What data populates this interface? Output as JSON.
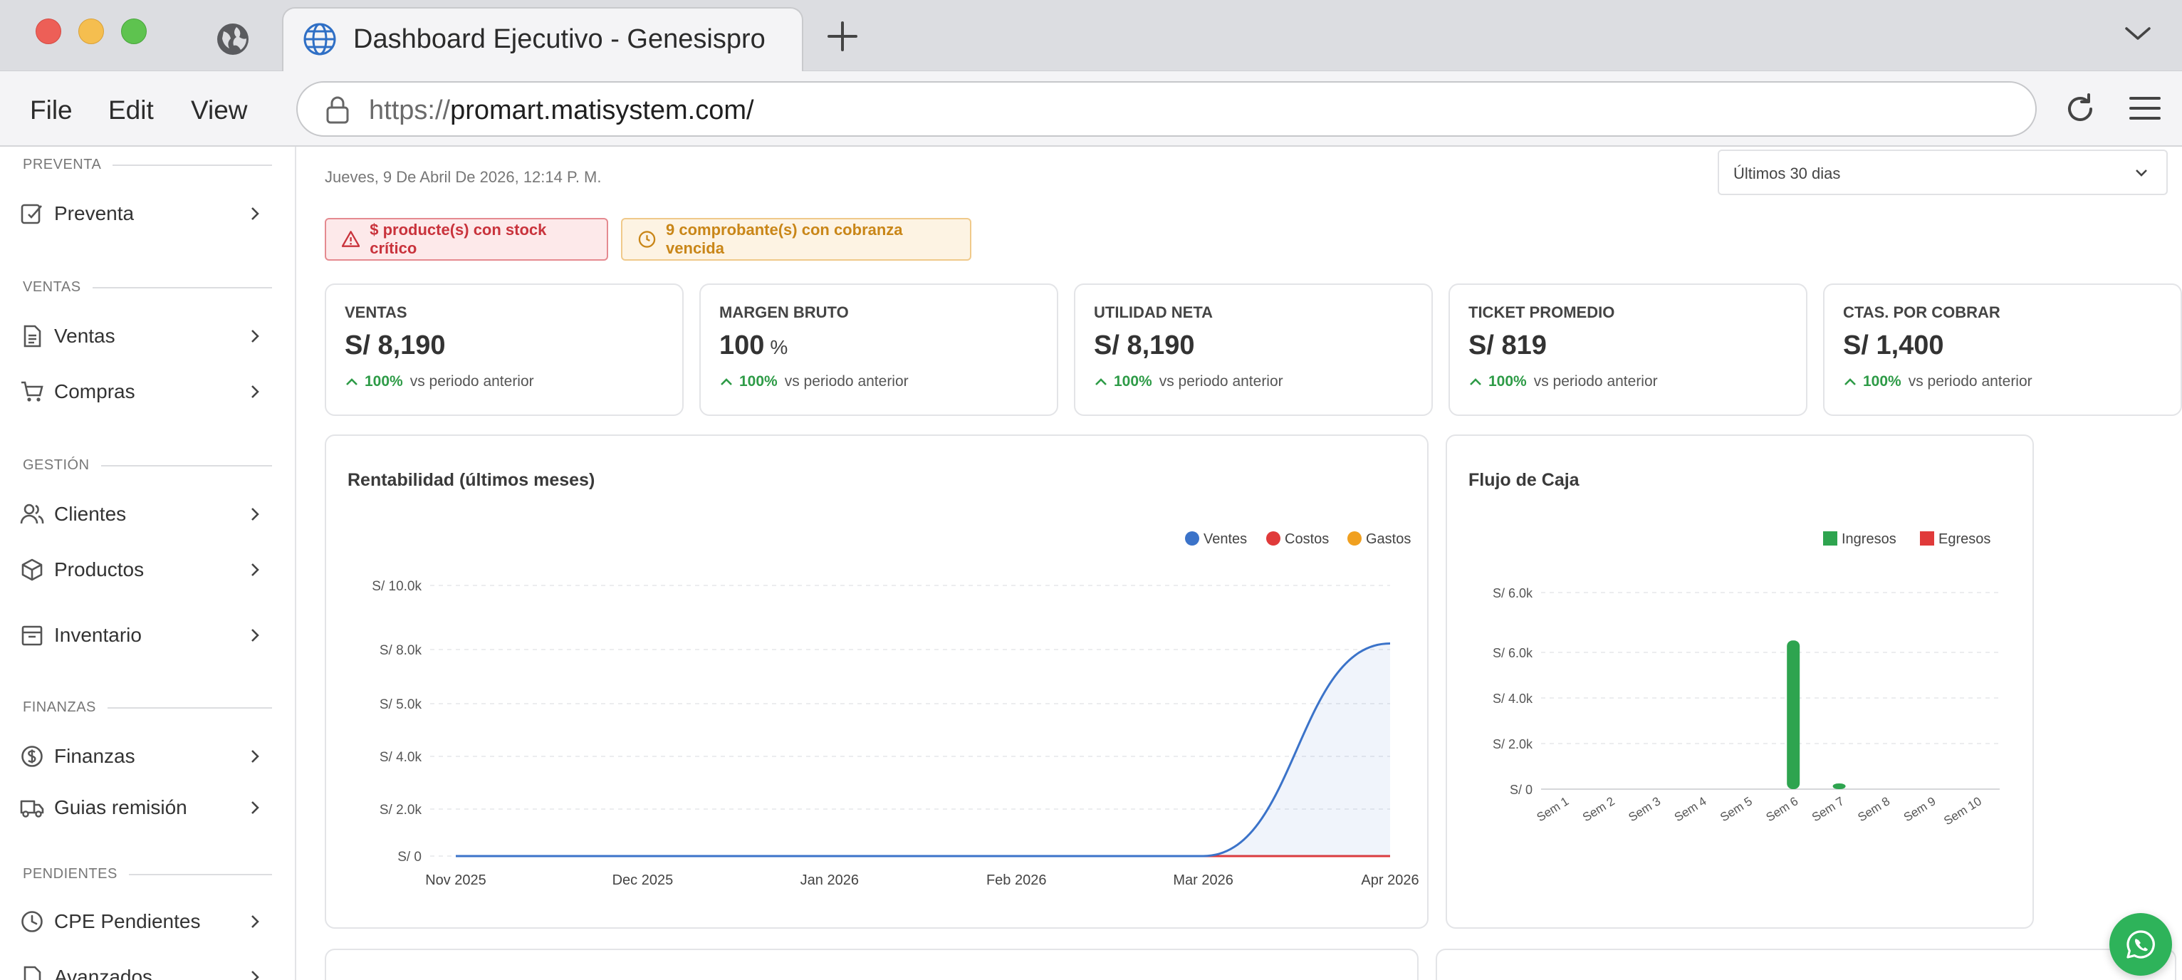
{
  "browser": {
    "tab_title": "Dashboard Ejecutivo - Genesispro",
    "url_scheme": "https://",
    "url_host": "promart.matisystem.com/",
    "menu": [
      "File",
      "Edit",
      "View"
    ]
  },
  "sidebar": {
    "sections": [
      {
        "title": "PREVENTA",
        "items": [
          {
            "label": "Preventa",
            "icon": "edit-icon"
          }
        ]
      },
      {
        "title": "VENTAS",
        "items": [
          {
            "label": "Ventas",
            "icon": "document-icon"
          },
          {
            "label": "Compras",
            "icon": "cart-icon"
          }
        ]
      },
      {
        "title": "GESTIÓN",
        "items": [
          {
            "label": "Clientes",
            "icon": "users-icon"
          },
          {
            "label": "Productos",
            "icon": "box-icon"
          },
          {
            "label": "Inventario",
            "icon": "archive-icon"
          }
        ]
      },
      {
        "title": "FINANZAS",
        "items": [
          {
            "label": "Finanzas",
            "icon": "dollar-icon"
          },
          {
            "label": "Guias remisión",
            "icon": "truck-icon"
          }
        ]
      },
      {
        "title": "PENDIENTES",
        "items": [
          {
            "label": "CPE Pendientes",
            "icon": "clock-icon"
          },
          {
            "label": "Avanzados",
            "icon": "file-icon"
          }
        ]
      }
    ]
  },
  "header": {
    "date": "Jueves, 9 De Abril De 2026, 12:14 P. M.",
    "period": "Últimos 30 dias"
  },
  "alerts": {
    "stock": "$ producte(s) con stock crítico",
    "cobranza": "9 comprobante(s) con cobranza vencida"
  },
  "kpis": [
    {
      "label": "VENTAS",
      "value": "S/ 8,190",
      "unit": "",
      "delta": "100%",
      "delta_text": "vs periodo anterior"
    },
    {
      "label": "MARGEN BRUTO",
      "value": "100",
      "unit": "%",
      "delta": "100%",
      "delta_text": "vs periodo anterior"
    },
    {
      "label": "UTILIDAD NETA",
      "value": "S/ 8,190",
      "unit": "",
      "delta": "100%",
      "delta_text": "vs periodo anterior"
    },
    {
      "label": "TICKET PROMEDIO",
      "value": "S/ 819",
      "unit": "",
      "delta": "100%",
      "delta_text": "vs periodo anterior"
    },
    {
      "label": "CTAS. POR COBRAR",
      "value": "S/ 1,400",
      "unit": "",
      "delta": "100%",
      "delta_text": "vs periodo anterior"
    }
  ],
  "colors": {
    "ventas": "#3b73c9",
    "costos": "#e03a3a",
    "gastos": "#f0a020",
    "ingresos": "#2ea44f",
    "egresos": "#e03a3a",
    "positive": "#2e9b47"
  },
  "chart_data": [
    {
      "type": "area",
      "title": "Rentabilidad (últimos meses)",
      "categories": [
        "Nov 2025",
        "Dec 2025",
        "Jan 2026",
        "Feb 2026",
        "Mar 2026",
        "Apr 2026"
      ],
      "y_ticks": [
        "S/ 0",
        "S/ 2.0k",
        "S/ 4.0k",
        "S/ 5.0k",
        "S/ 8.0k",
        "S/ 10.0k"
      ],
      "series": [
        {
          "name": "Ventes",
          "values": [
            0,
            0,
            0,
            0,
            0,
            8190
          ]
        },
        {
          "name": "Costos",
          "values": [
            0,
            0,
            0,
            0,
            0,
            0
          ]
        },
        {
          "name": "Gastos",
          "values": [
            0,
            0,
            0,
            0,
            0,
            0
          ]
        }
      ],
      "legend": "top-right",
      "grid": true
    },
    {
      "type": "bar",
      "title": "Flujo de Caja",
      "categories": [
        "Sem 1",
        "Sem 2",
        "Sem 3",
        "Sem 4",
        "Sem 5",
        "Sem 6",
        "Sem 7",
        "Sem 8",
        "Sem 9",
        "Sem 10"
      ],
      "y_ticks": [
        "S/ 0",
        "S/ 2.0k",
        "S/ 4.0k",
        "S/ 6.0k",
        "S/ 6.0k"
      ],
      "series": [
        {
          "name": "Ingresos",
          "values": [
            0,
            0,
            0,
            0,
            0,
            6400,
            250,
            0,
            0,
            0
          ]
        },
        {
          "name": "Egresos",
          "values": [
            0,
            0,
            0,
            0,
            0,
            0,
            0,
            0,
            0,
            0
          ]
        }
      ],
      "legend": "top-right",
      "grid": true
    }
  ]
}
